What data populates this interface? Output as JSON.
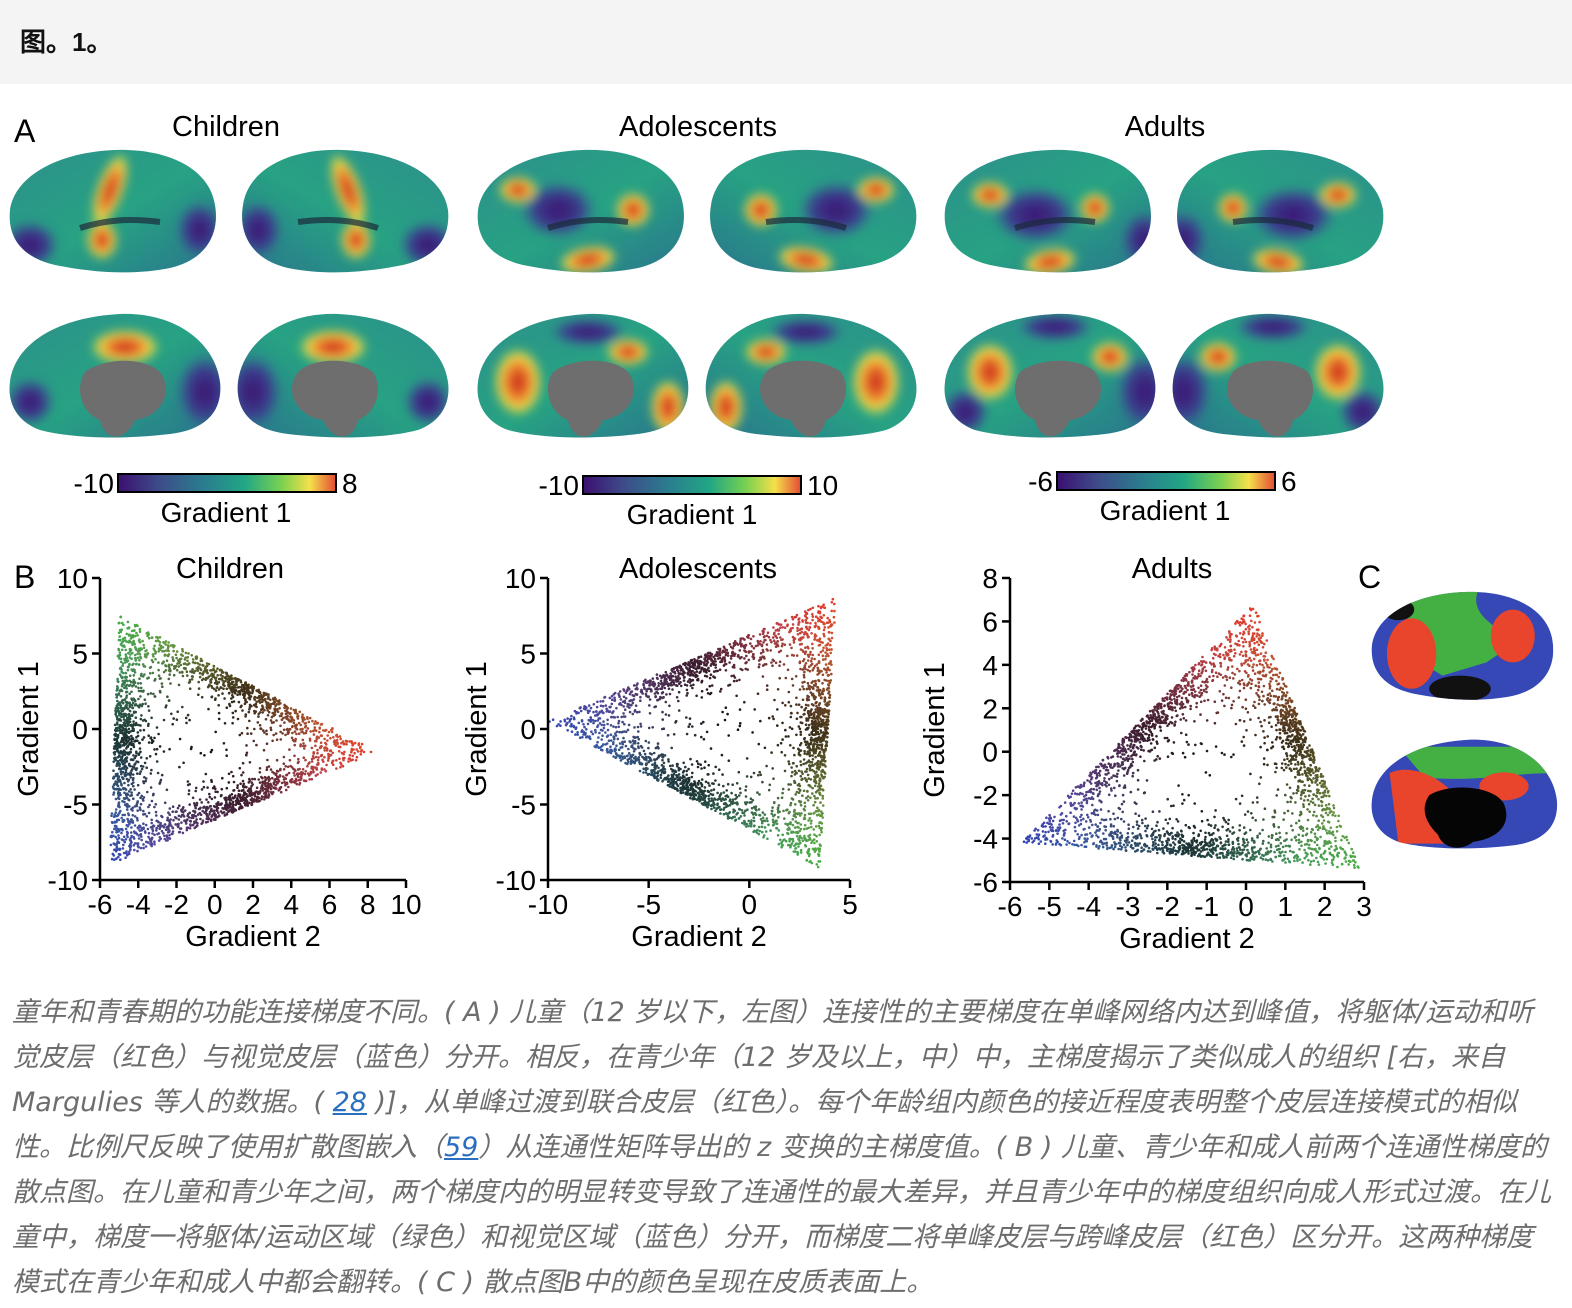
{
  "header": {
    "figure_label": "图。1。"
  },
  "panels": {
    "A": {
      "letter": "A",
      "groups": [
        {
          "title": "Children",
          "colorbar_min": "-10",
          "colorbar_max": "8",
          "colorbar_label": "Gradient 1"
        },
        {
          "title": "Adolescents",
          "colorbar_min": "-10",
          "colorbar_max": "10",
          "colorbar_label": "Gradient 1"
        },
        {
          "title": "Adults",
          "colorbar_min": "-6",
          "colorbar_max": "6",
          "colorbar_label": "Gradient 1"
        }
      ]
    },
    "B": {
      "letter": "B"
    },
    "C": {
      "letter": "C"
    }
  },
  "colors": {
    "viridis_stops": [
      "#3b0f70",
      "#3e4a89",
      "#2b7a8e",
      "#21a685",
      "#7ad151",
      "#f5e04a",
      "#e34a33"
    ],
    "cortex_red": "#e8452c",
    "cortex_green": "#44b043",
    "cortex_blue": "#3548b5",
    "medial_wall": "#6e6e6e"
  },
  "chart_data": [
    {
      "type": "scatter",
      "title": "Children",
      "xlabel": "Gradient 2",
      "ylabel": "Gradient 1",
      "xlim": [
        -6,
        10
      ],
      "ylim": [
        -10,
        10
      ],
      "xticks": [
        -6,
        -4,
        -2,
        0,
        2,
        4,
        6,
        8,
        10
      ],
      "yticks": [
        10,
        5,
        0,
        -5,
        -10
      ],
      "triangle_vertices": [
        [
          -5,
          7.5
        ],
        [
          8.5,
          -1.5
        ],
        [
          -5.5,
          -9
        ]
      ],
      "vertex_colors": [
        "green",
        "red",
        "blue"
      ]
    },
    {
      "type": "scatter",
      "title": "Adolescents",
      "xlabel": "Gradient 2",
      "ylabel": "Gradient 1",
      "xlim": [
        -10,
        5
      ],
      "ylim": [
        -10,
        10
      ],
      "xticks": [
        -10,
        -5,
        0,
        5
      ],
      "yticks": [
        10,
        5,
        0,
        -5,
        -10
      ],
      "triangle_vertices": [
        [
          -10,
          0.5
        ],
        [
          4.3,
          8.7
        ],
        [
          3.5,
          -9.2
        ]
      ],
      "vertex_colors": [
        "blue",
        "red",
        "green"
      ]
    },
    {
      "type": "scatter",
      "title": "Adults",
      "xlabel": "Gradient 2",
      "ylabel": "Gradient 1",
      "xlim": [
        -6,
        3
      ],
      "ylim": [
        -6,
        8
      ],
      "xticks": [
        -6,
        -5,
        -4,
        -3,
        -2,
        -1,
        0,
        1,
        2,
        3
      ],
      "yticks": [
        8,
        6,
        4,
        2,
        0,
        -2,
        -4,
        -6
      ],
      "triangle_vertices": [
        [
          -5.7,
          -4.2
        ],
        [
          0.2,
          6.8
        ],
        [
          2.9,
          -5.4
        ]
      ],
      "vertex_colors": [
        "blue",
        "red",
        "green"
      ]
    }
  ],
  "caption": {
    "part1": "童年和青春期的功能连接梯度不同。( A ) 儿童（12 岁以下，左图）连接性的主要梯度在单峰网络内达到峰值，将躯体/运动和听觉皮层（红色）与视觉皮层（蓝色）分开。相反，在青少年（12 岁及以上，中）中，主梯度揭示了类似成人的组织 [右，来自 Margulies 等人的数据。(",
    "ref1": "28",
    "part2": ")]，从单峰过渡到联合皮层（红色）。每个年龄组内颜色的接近程度表明整个皮层连接模式的相似性。比例尺反映了使用扩散图嵌入（",
    "ref2": "59",
    "part3": "）从连通性矩阵导出的 z 变换的主梯度值。( B ) 儿童、青少年和成人前两个连通性梯度的散点图。在儿童和青少年之间，两个梯度内的明显转变导致了连通性的最大差异，并且青少年中的梯度组织向成人形式过渡。在儿童中，梯度一将躯体/运动区域（绿色）和视觉区域（蓝色）分开，而梯度二将单峰皮层与跨峰皮层（红色）区分开。这两种梯度模式在青少年和成人中都会翻转。( C ) 散点图B中的颜色呈现在皮质表面上。"
  }
}
